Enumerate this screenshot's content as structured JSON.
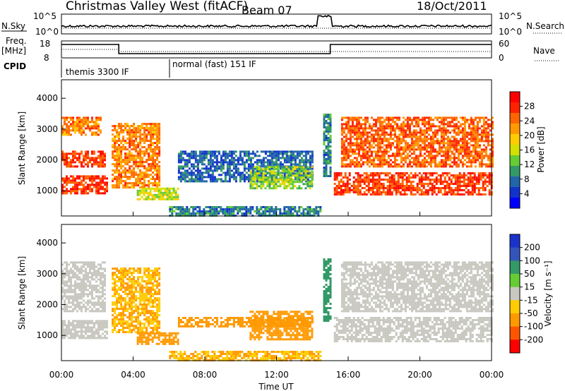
{
  "header": {
    "station": "Christmas Valley West (fitACF)",
    "beam": "Beam 07",
    "date": "18/Oct/2011"
  },
  "top_panels": {
    "nsky_label": "N.Sky",
    "nsky_ticks": [
      "10^5",
      "10^0"
    ],
    "nsearch_label": "N.Search",
    "nsearch_ticks": [
      "10^5",
      "10^0"
    ],
    "freq_label_1": "Freq.",
    "freq_label_2": "[MHz]",
    "freq_ticks": [
      "18",
      "8"
    ],
    "nave_label": "Nave",
    "nave_ticks": [
      "60",
      "0"
    ],
    "cpid_label": "CPID",
    "cpid_modes": [
      "themis 3300 IF",
      "normal (fast) 151 IF"
    ]
  },
  "power_colorbar": {
    "label": "Power [dB]",
    "ticks": [
      "28",
      "24",
      "20",
      "16",
      "12",
      "8",
      "4"
    ],
    "colors": [
      "#ff0000",
      "#ff2200",
      "#ff6600",
      "#ff9900",
      "#ffcc00",
      "#d4e000",
      "#66cc33",
      "#339966",
      "#2266aa",
      "#1133cc",
      "#0000ff"
    ]
  },
  "velocity_colorbar": {
    "label": "Velocity [m s⁻¹]",
    "ticks": [
      "200",
      "100",
      "50",
      "15",
      "-15",
      "-50",
      "-100",
      "-200"
    ],
    "colors": [
      "#1a33cc",
      "#3355bb",
      "#339966",
      "#66cc33",
      "#c8c8c0",
      "#ffcc00",
      "#ff9900",
      "#ff5500",
      "#ff0000"
    ]
  },
  "chart_data": {
    "type": "heatmap",
    "xlabel": "Time UT",
    "ylabel_power": "Slant Range [km]",
    "ylabel_velocity": "Slant Range [km]",
    "x_ticks": [
      "00:00",
      "04:00",
      "08:00",
      "12:00",
      "16:00",
      "20:00",
      "00:00"
    ],
    "x_range_hours": [
      0,
      24
    ],
    "y_ticks": [
      "4000",
      "3000",
      "2000",
      "1000"
    ],
    "y_range_km": [
      180,
      4600
    ],
    "cpid_changes_hours": [
      0,
      6.0
    ],
    "freq_step_up_hours": 15.0,
    "power_regions": [
      {
        "t0": 0.0,
        "t1": 2.6,
        "r0": 900,
        "r1": 1500,
        "level": 28
      },
      {
        "t0": 0.0,
        "t1": 2.4,
        "r0": 1800,
        "r1": 2300,
        "level": 28
      },
      {
        "t0": 0.0,
        "t1": 2.2,
        "r0": 2800,
        "r1": 3400,
        "level": 24
      },
      {
        "t0": 2.8,
        "t1": 5.5,
        "r0": 1100,
        "r1": 3200,
        "level": 24
      },
      {
        "t0": 4.2,
        "t1": 6.5,
        "r0": 700,
        "r1": 1100,
        "level": 16
      },
      {
        "t0": 6.0,
        "t1": 14.5,
        "r0": 200,
        "r1": 500,
        "level": 8
      },
      {
        "t0": 6.5,
        "t1": 14.0,
        "r0": 1300,
        "r1": 2300,
        "level": 6
      },
      {
        "t0": 10.5,
        "t1": 14.0,
        "r0": 1100,
        "r1": 1800,
        "level": 14
      },
      {
        "t0": 14.6,
        "t1": 15.0,
        "r0": 1500,
        "r1": 3500,
        "level": 8
      },
      {
        "t0": 15.2,
        "t1": 24.0,
        "r0": 900,
        "r1": 1600,
        "level": 28
      },
      {
        "t0": 15.6,
        "t1": 24.0,
        "r0": 1800,
        "r1": 3400,
        "level": 26
      }
    ],
    "velocity_regions": [
      {
        "t0": 0.0,
        "t1": 2.6,
        "r0": 900,
        "r1": 1500,
        "v": 0
      },
      {
        "t0": 0.0,
        "t1": 2.4,
        "r0": 1800,
        "r1": 3400,
        "v": 0
      },
      {
        "t0": 2.8,
        "t1": 5.5,
        "r0": 1100,
        "r1": 3200,
        "v": -30
      },
      {
        "t0": 4.2,
        "t1": 6.5,
        "r0": 700,
        "r1": 1100,
        "v": -50
      },
      {
        "t0": 6.0,
        "t1": 14.5,
        "r0": 200,
        "r1": 500,
        "v": -30
      },
      {
        "t0": 6.5,
        "t1": 14.0,
        "r0": 1300,
        "r1": 1600,
        "v": -40
      },
      {
        "t0": 10.5,
        "t1": 14.0,
        "r0": 900,
        "r1": 1800,
        "v": -60
      },
      {
        "t0": 14.6,
        "t1": 15.0,
        "r0": 1500,
        "r1": 3500,
        "v": 40
      },
      {
        "t0": 15.2,
        "t1": 24.0,
        "r0": 800,
        "r1": 1600,
        "v": 0
      },
      {
        "t0": 15.6,
        "t1": 24.0,
        "r0": 1800,
        "r1": 3400,
        "v": 0
      }
    ]
  }
}
